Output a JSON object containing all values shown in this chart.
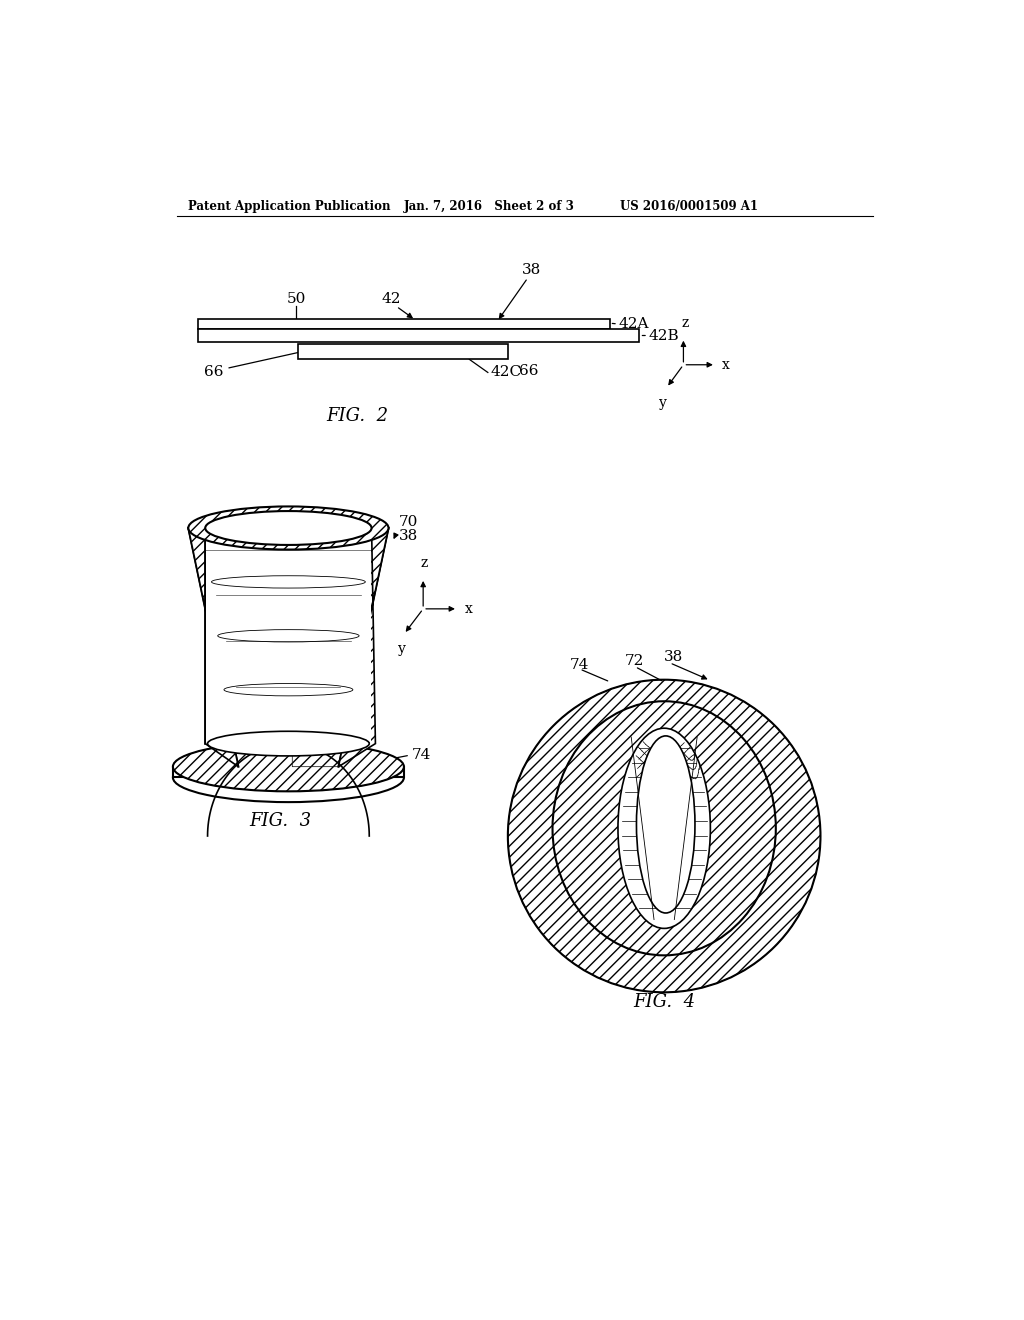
{
  "header_left": "Patent Application Publication",
  "header_mid": "Jan. 7, 2016   Sheet 2 of 3",
  "header_right": "US 2016/0001509 A1",
  "fig2_label": "FIG.  2",
  "fig3_label": "FIG.  3",
  "fig4_label": "FIG.  4",
  "bg_color": "#ffffff",
  "line_color": "#000000"
}
